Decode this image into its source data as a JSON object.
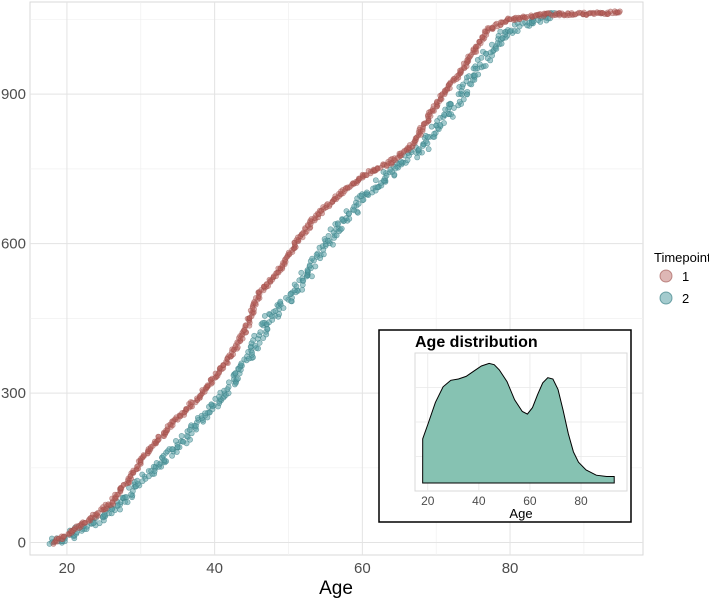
{
  "chart_data": {
    "type": "scatter",
    "xlabel": "Age",
    "ylabel": "",
    "xlim": [
      15,
      98
    ],
    "ylim": [
      -25,
      1085
    ],
    "x_ticks": [
      20,
      40,
      60,
      80
    ],
    "y_ticks": [
      0,
      300,
      600,
      900
    ],
    "grid": true,
    "legend": {
      "title": "Timepoint",
      "position": "right",
      "entries": [
        "1",
        "2"
      ]
    },
    "colors": {
      "1": "#b5605a",
      "2": "#5aa0a6",
      "density_fill": "#7fbfae"
    },
    "series": [
      {
        "name": "1",
        "description_points": [
          [
            18,
            0
          ],
          [
            20,
            15
          ],
          [
            23,
            45
          ],
          [
            26,
            80
          ],
          [
            29,
            140
          ],
          [
            31,
            185
          ],
          [
            35,
            250
          ],
          [
            38,
            295
          ],
          [
            41,
            350
          ],
          [
            44,
            420
          ],
          [
            46,
            500
          ],
          [
            49,
            550
          ],
          [
            51,
            600
          ],
          [
            54,
            660
          ],
          [
            57,
            700
          ],
          [
            60,
            735
          ],
          [
            64,
            765
          ],
          [
            67,
            800
          ],
          [
            69,
            855
          ],
          [
            71,
            900
          ],
          [
            74,
            960
          ],
          [
            77,
            1030
          ],
          [
            80,
            1050
          ],
          [
            85,
            1060
          ],
          [
            92,
            1062
          ],
          [
            95,
            1065
          ]
        ]
      },
      {
        "name": "2",
        "description_points": [
          [
            18,
            0
          ],
          [
            20,
            10
          ],
          [
            23,
            35
          ],
          [
            26,
            60
          ],
          [
            29,
            105
          ],
          [
            32,
            150
          ],
          [
            36,
            210
          ],
          [
            39,
            260
          ],
          [
            42,
            310
          ],
          [
            45,
            380
          ],
          [
            47,
            440
          ],
          [
            50,
            490
          ],
          [
            53,
            550
          ],
          [
            56,
            620
          ],
          [
            60,
            690
          ],
          [
            65,
            760
          ],
          [
            68,
            790
          ],
          [
            70,
            830
          ],
          [
            73,
            890
          ],
          [
            76,
            960
          ],
          [
            79,
            1020
          ],
          [
            83,
            1048
          ],
          [
            86,
            1060
          ]
        ]
      }
    ],
    "inset": {
      "type": "area",
      "title": "Age distribution",
      "xlabel": "Age",
      "x_ticks": [
        20,
        40,
        60,
        80
      ],
      "xlim": [
        15,
        98
      ],
      "ylim": [
        0,
        1
      ],
      "density": [
        [
          18,
          0.34
        ],
        [
          20,
          0.45
        ],
        [
          23,
          0.62
        ],
        [
          26,
          0.74
        ],
        [
          29,
          0.79
        ],
        [
          32,
          0.8
        ],
        [
          35,
          0.82
        ],
        [
          38,
          0.86
        ],
        [
          41,
          0.9
        ],
        [
          44,
          0.92
        ],
        [
          46,
          0.91
        ],
        [
          48,
          0.87
        ],
        [
          51,
          0.78
        ],
        [
          54,
          0.64
        ],
        [
          57,
          0.55
        ],
        [
          59,
          0.53
        ],
        [
          61,
          0.58
        ],
        [
          63,
          0.68
        ],
        [
          65,
          0.77
        ],
        [
          67,
          0.81
        ],
        [
          69,
          0.8
        ],
        [
          71,
          0.72
        ],
        [
          73,
          0.56
        ],
        [
          75,
          0.38
        ],
        [
          77,
          0.24
        ],
        [
          79,
          0.16
        ],
        [
          82,
          0.1
        ],
        [
          86,
          0.06
        ],
        [
          90,
          0.05
        ],
        [
          93,
          0.05
        ]
      ]
    }
  }
}
